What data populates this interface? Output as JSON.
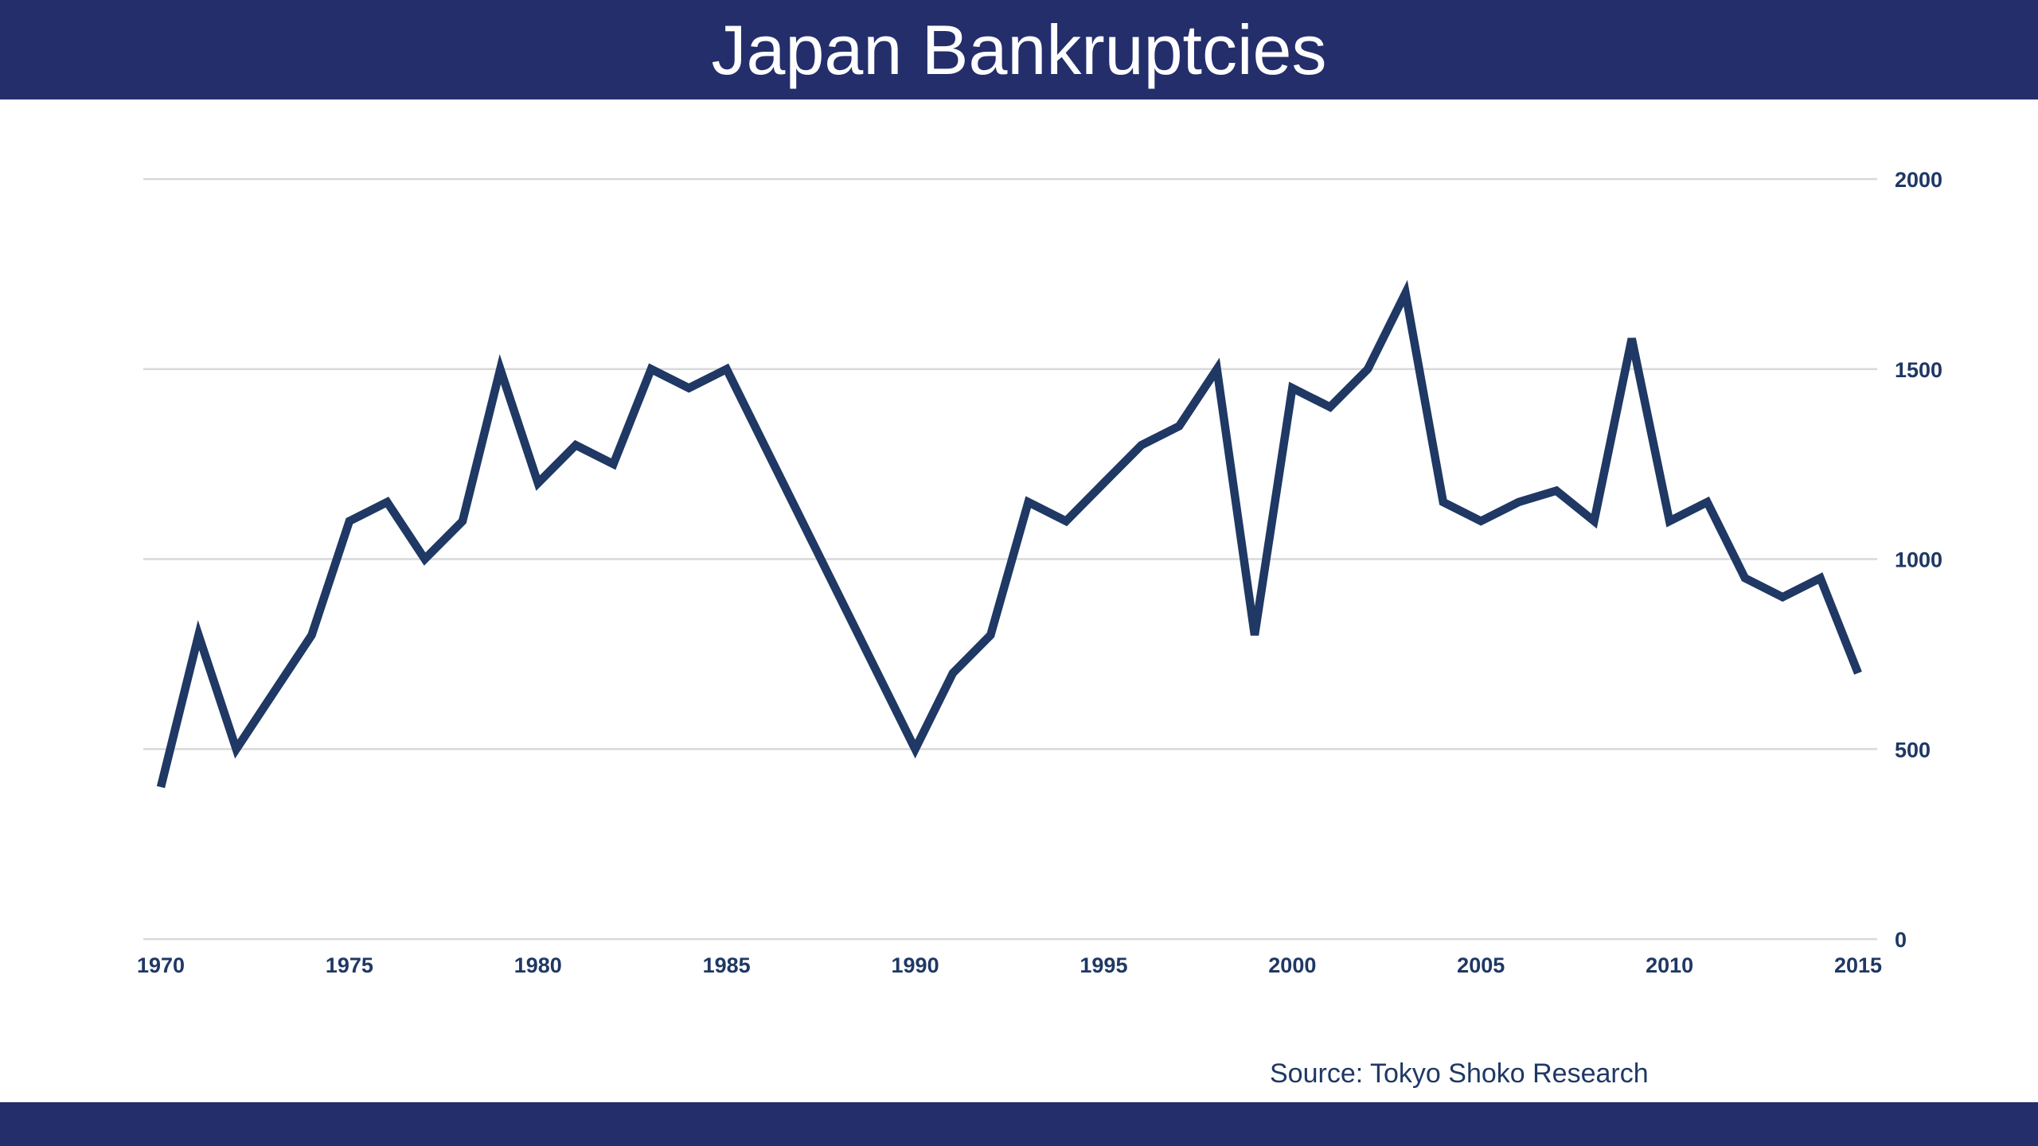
{
  "header": {
    "title": "Japan Bankruptcies",
    "bar_color": "#232e6b",
    "text_color": "#ffffff"
  },
  "chart_data": {
    "type": "line",
    "title": "Japan Bankruptcies",
    "x": [
      1970,
      1971,
      1972,
      1973,
      1974,
      1975,
      1976,
      1977,
      1978,
      1979,
      1980,
      1981,
      1982,
      1983,
      1984,
      1985,
      1986,
      1987,
      1988,
      1989,
      1990,
      1991,
      1992,
      1993,
      1994,
      1995,
      1996,
      1997,
      1998,
      1999,
      2000,
      2001,
      2002,
      2003,
      2004,
      2005,
      2006,
      2007,
      2008,
      2009,
      2010,
      2011,
      2012,
      2013,
      2014,
      2015
    ],
    "series": [
      {
        "name": "Bankruptcies",
        "color": "#1f3864",
        "values": [
          400,
          800,
          500,
          650,
          800,
          1100,
          1150,
          1000,
          1100,
          1500,
          1200,
          1300,
          1250,
          1500,
          1450,
          1500,
          1300,
          1100,
          900,
          700,
          500,
          700,
          800,
          1150,
          1100,
          1200,
          1300,
          1350,
          1500,
          800,
          1450,
          1400,
          1500,
          1700,
          1150,
          1100,
          1150,
          1180,
          1100,
          1580,
          1100,
          1150,
          950,
          900,
          950,
          700
        ]
      }
    ],
    "x_tick_labels": [
      "1970",
      "1975",
      "1980",
      "1985",
      "1990",
      "1995",
      "2000",
      "2005",
      "2010",
      "2015"
    ],
    "y_ticks": [
      0,
      500,
      1000,
      1500,
      2000
    ],
    "y_tick_labels": [
      "0",
      "500",
      "1000",
      "1500",
      "2000"
    ],
    "xlim": [
      1970,
      2015
    ],
    "ylim": [
      0,
      2000
    ],
    "grid": "horizontal",
    "gridline_color": "#d9d9d9",
    "axis_label_color": "#1f3864",
    "legend_position": "none"
  },
  "source": {
    "text": "Source: Tokyo Shoko Research",
    "text_color": "#1f3864"
  },
  "footer": {
    "bar_color": "#232e6b"
  }
}
